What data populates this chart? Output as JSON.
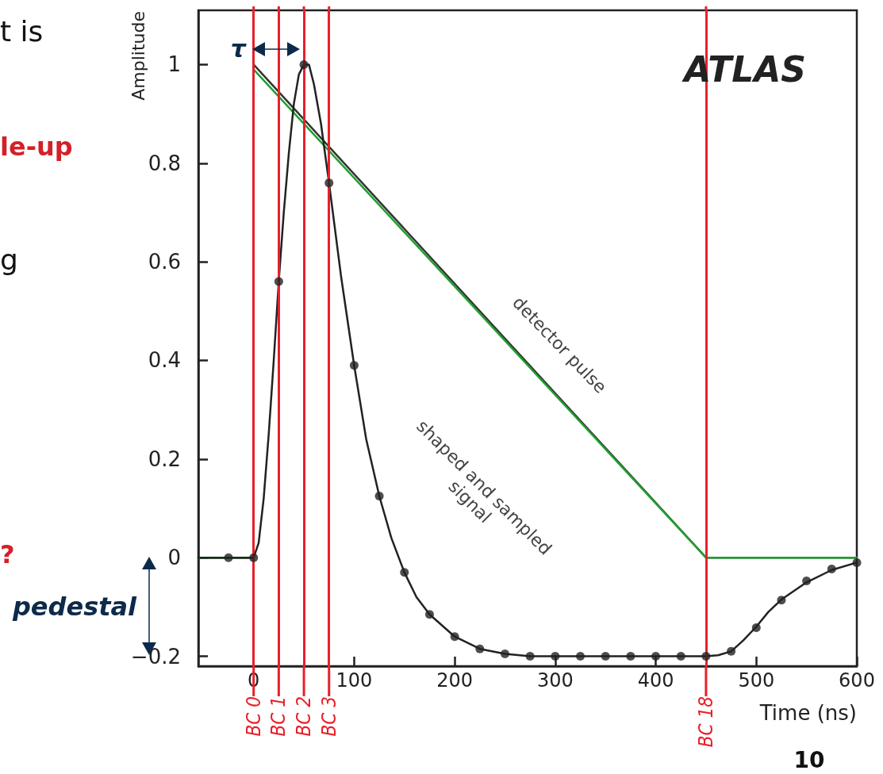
{
  "chart_data": {
    "type": "line",
    "xlabel": "Time (ns)",
    "ylabel": "Amplitude",
    "xlim": [
      -55,
      600
    ],
    "ylim": [
      -0.22,
      1.11
    ],
    "xticks": [
      0,
      100,
      200,
      300,
      400,
      500,
      600
    ],
    "yticks": [
      {
        "value": -0.2,
        "label": "−0.2"
      },
      0,
      0.2,
      0.4,
      0.6,
      0.8,
      1
    ],
    "grid": false,
    "series": [
      {
        "color": "#333333",
        "x": [
          -55,
          0,
          0,
          450,
          600
        ],
        "values": [
          0,
          0,
          1,
          0,
          0
        ],
        "marker": "none"
      },
      {
        "color": "#1fa02f",
        "x": [
          -55,
          0,
          0,
          450,
          600
        ],
        "values": [
          0,
          0,
          0.99,
          0,
          0
        ],
        "marker": "none"
      },
      {
        "color": "#222222",
        "x": [
          -55,
          0,
          5,
          10,
          15,
          20,
          25,
          30,
          35,
          40,
          45,
          50,
          55,
          60,
          67,
          75,
          87,
          100,
          112,
          125,
          137,
          150,
          162,
          175,
          200,
          225,
          250,
          275,
          300,
          350,
          400,
          450,
          462,
          475,
          487,
          500,
          512,
          525,
          550,
          575,
          600
        ],
        "values": [
          0,
          0,
          0.03,
          0.12,
          0.25,
          0.4,
          0.56,
          0.7,
          0.82,
          0.92,
          0.98,
          1.0,
          1.0,
          0.96,
          0.88,
          0.76,
          0.57,
          0.39,
          0.24,
          0.125,
          0.04,
          -0.03,
          -0.08,
          -0.115,
          -0.16,
          -0.185,
          -0.195,
          -0.2,
          -0.2,
          -0.2,
          -0.2,
          -0.2,
          -0.198,
          -0.19,
          -0.168,
          -0.14,
          -0.11,
          -0.085,
          -0.05,
          -0.025,
          -0.01
        ],
        "marker": "none"
      },
      {
        "type": "scatter",
        "color": "#222222",
        "x": [
          -25,
          0,
          25,
          50,
          75,
          100,
          125,
          150,
          175,
          200,
          225,
          250,
          275,
          300,
          325,
          350,
          375,
          400,
          425,
          450,
          475,
          500,
          525,
          550,
          575,
          600
        ],
        "values": [
          0,
          0,
          0.56,
          1.0,
          0.76,
          0.39,
          0.125,
          -0.03,
          -0.115,
          -0.16,
          -0.185,
          -0.195,
          -0.2,
          -0.2,
          -0.2,
          -0.2,
          -0.2,
          -0.2,
          -0.2,
          -0.2,
          -0.19,
          -0.142,
          -0.086,
          -0.047,
          -0.023,
          -0.01
        ],
        "marker": "circle"
      }
    ],
    "ref_lines": [
      {
        "axis": "x",
        "value": 0,
        "label": "BC 0",
        "color": "#e8202a"
      },
      {
        "axis": "x",
        "value": 25,
        "label": "BC 1",
        "color": "#e8202a"
      },
      {
        "axis": "x",
        "value": 50,
        "label": "BC 2",
        "color": "#e8202a"
      },
      {
        "axis": "x",
        "value": 75,
        "label": "BC 3",
        "color": "#e8202a"
      },
      {
        "axis": "x",
        "value": 450,
        "label": "BC 18",
        "color": "#e8202a"
      }
    ],
    "annotations": [
      "τ",
      "pedestal",
      "ATLAS",
      "detector pulse",
      "shaped and sampled\nsignal",
      "t is",
      "le-up",
      "g",
      "?",
      "10"
    ]
  }
}
